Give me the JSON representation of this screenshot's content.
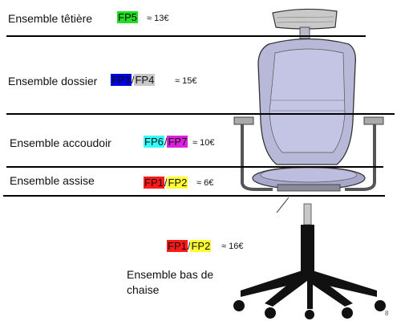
{
  "colors": {
    "FP1": "#ff1a1a",
    "FP2": "#ffff33",
    "FP3": "#0000e0",
    "FP4": "#c8c8c8",
    "FP5": "#22dd22",
    "FP6": "#33ffff",
    "FP7": "#dd22dd"
  },
  "groups": {
    "headrest": {
      "label": "Ensemble têtière",
      "fp_a": "FP5",
      "price": "≈ 13€"
    },
    "backrest": {
      "label": "Ensemble dossier",
      "fp_a": "FP3",
      "sep": "/",
      "fp_b": "FP4",
      "price": "≈ 15€"
    },
    "armrest": {
      "label": "Ensemble accoudoir",
      "fp_a": "FP6",
      "sep": "/",
      "fp_b": "FP7",
      "price": "≈ 10€"
    },
    "seat": {
      "label": "Ensemble assise",
      "fp_a": "FP1",
      "sep": "/",
      "fp_b": "FP2",
      "price": "≈ 6€"
    },
    "base": {
      "label": "Ensemble bas de chaise",
      "label_line1": "Ensemble bas de",
      "label_line2": "chaise",
      "fp_a": "FP1",
      "sep": "/",
      "fp_b": "FP2",
      "price": "≈ 16€"
    }
  },
  "page_number": "8"
}
